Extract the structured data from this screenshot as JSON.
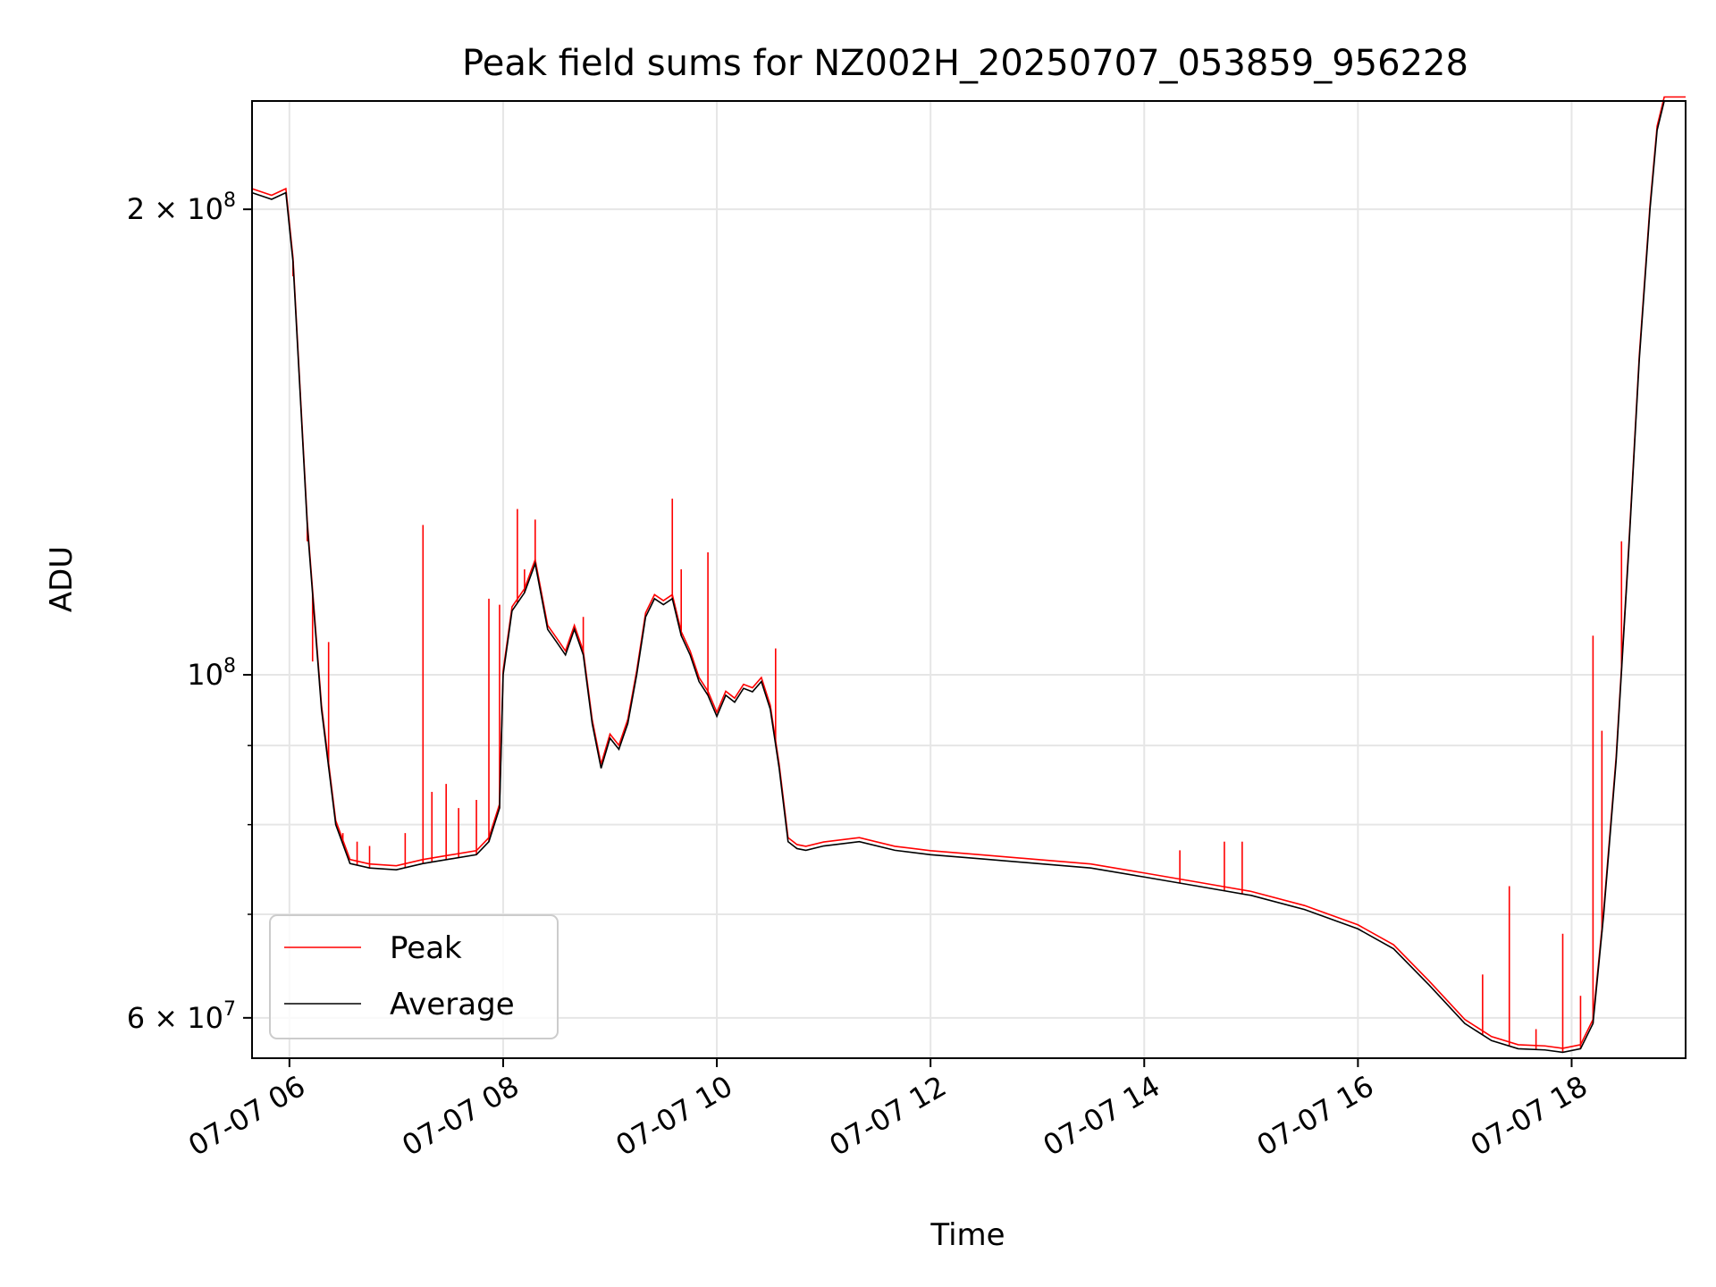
{
  "chart_data": {
    "type": "line",
    "title": "Peak field sums for NZ002H_20250707_053859_956228",
    "xlabel": "Time",
    "ylabel": "ADU",
    "yscale": "log",
    "xlim": [
      "07-07 05:39",
      "07-07 19:04"
    ],
    "ylim": [
      56500000,
      235000000
    ],
    "x_ticks": [
      {
        "t": "07-07 06:00",
        "label": "07-07 06"
      },
      {
        "t": "07-07 08:00",
        "label": "07-07 08"
      },
      {
        "t": "07-07 10:00",
        "label": "07-07 10"
      },
      {
        "t": "07-07 12:00",
        "label": "07-07 12"
      },
      {
        "t": "07-07 14:00",
        "label": "07-07 14"
      },
      {
        "t": "07-07 16:00",
        "label": "07-07 16"
      },
      {
        "t": "07-07 18:00",
        "label": "07-07 18"
      }
    ],
    "y_major_ticks": [
      {
        "v": 60000000,
        "base": "6 × 10",
        "exp": "7"
      },
      {
        "v": 100000000,
        "base": "10",
        "exp": "8"
      },
      {
        "v": 200000000,
        "base": "2 × 10",
        "exp": "8"
      }
    ],
    "y_minor_grid": [
      70000000,
      80000000,
      90000000
    ],
    "grid": true,
    "legend_position": "lower-left",
    "series": [
      {
        "name": "Average",
        "color": "#000000",
        "x": [
          "07-07 05:39",
          "07-07 05:50",
          "07-07 05:58",
          "07-07 06:02",
          "07-07 06:10",
          "07-07 06:18",
          "07-07 06:26",
          "07-07 06:34",
          "07-07 06:45",
          "07-07 07:00",
          "07-07 07:15",
          "07-07 07:30",
          "07-07 07:45",
          "07-07 07:52",
          "07-07 07:58",
          "07-07 08:00",
          "07-07 08:05",
          "07-07 08:12",
          "07-07 08:18",
          "07-07 08:25",
          "07-07 08:30",
          "07-07 08:35",
          "07-07 08:40",
          "07-07 08:45",
          "07-07 08:50",
          "07-07 08:55",
          "07-07 09:00",
          "07-07 09:05",
          "07-07 09:10",
          "07-07 09:15",
          "07-07 09:20",
          "07-07 09:25",
          "07-07 09:30",
          "07-07 09:35",
          "07-07 09:40",
          "07-07 09:45",
          "07-07 09:50",
          "07-07 09:55",
          "07-07 10:00",
          "07-07 10:05",
          "07-07 10:10",
          "07-07 10:15",
          "07-07 10:20",
          "07-07 10:25",
          "07-07 10:30",
          "07-07 10:35",
          "07-07 10:40",
          "07-07 10:45",
          "07-07 10:50",
          "07-07 11:00",
          "07-07 11:20",
          "07-07 11:40",
          "07-07 12:00",
          "07-07 12:30",
          "07-07 13:00",
          "07-07 13:30",
          "07-07 14:00",
          "07-07 14:30",
          "07-07 15:00",
          "07-07 15:30",
          "07-07 16:00",
          "07-07 16:20",
          "07-07 16:40",
          "07-07 17:00",
          "07-07 17:15",
          "07-07 17:30",
          "07-07 17:45",
          "07-07 17:55",
          "07-07 18:05",
          "07-07 18:12",
          "07-07 18:18",
          "07-07 18:25",
          "07-07 18:32",
          "07-07 18:38",
          "07-07 18:44",
          "07-07 18:48",
          "07-07 18:52",
          "07-07 19:04"
        ],
        "values": [
          205000000,
          203000000,
          205000000,
          185000000,
          125000000,
          95000000,
          80000000,
          75500000,
          75000000,
          74800000,
          75500000,
          76000000,
          76500000,
          78000000,
          82000000,
          100000000,
          110000000,
          113000000,
          118000000,
          107000000,
          105000000,
          103000000,
          107000000,
          103000000,
          93000000,
          87000000,
          91000000,
          89500000,
          93000000,
          100000000,
          109000000,
          112000000,
          111000000,
          112000000,
          106000000,
          103000000,
          99000000,
          97000000,
          94000000,
          97000000,
          96000000,
          98000000,
          97500000,
          99000000,
          95000000,
          87000000,
          78000000,
          77200000,
          77000000,
          77500000,
          78000000,
          77000000,
          76500000,
          76000000,
          75500000,
          75000000,
          74000000,
          73000000,
          72000000,
          70500000,
          68500000,
          66500000,
          63000000,
          59500000,
          58000000,
          57300000,
          57200000,
          57000000,
          57300000,
          59500000,
          70000000,
          88000000,
          120000000,
          160000000,
          200000000,
          225000000,
          235000000,
          235000000
        ]
      },
      {
        "name": "Peak",
        "color": "#ff0000",
        "spikes": [
          {
            "t": "07-07 06:02",
            "v": 181000000
          },
          {
            "t": "07-07 06:10",
            "v": 122000000
          },
          {
            "t": "07-07 06:13",
            "v": 102000000
          },
          {
            "t": "07-07 06:17",
            "v": 99000000
          },
          {
            "t": "07-07 06:22",
            "v": 105000000
          },
          {
            "t": "07-07 06:30",
            "v": 79000000
          },
          {
            "t": "07-07 06:38",
            "v": 78000000
          },
          {
            "t": "07-07 06:45",
            "v": 77500000
          },
          {
            "t": "07-07 07:05",
            "v": 79000000
          },
          {
            "t": "07-07 07:15",
            "v": 125000000
          },
          {
            "t": "07-07 07:20",
            "v": 84000000
          },
          {
            "t": "07-07 07:28",
            "v": 85000000
          },
          {
            "t": "07-07 07:35",
            "v": 82000000
          },
          {
            "t": "07-07 07:45",
            "v": 83000000
          },
          {
            "t": "07-07 07:52",
            "v": 112000000
          },
          {
            "t": "07-07 07:58",
            "v": 111000000
          },
          {
            "t": "07-07 08:08",
            "v": 128000000
          },
          {
            "t": "07-07 08:12",
            "v": 117000000
          },
          {
            "t": "07-07 08:18",
            "v": 126000000
          },
          {
            "t": "07-07 08:45",
            "v": 109000000
          },
          {
            "t": "07-07 09:35",
            "v": 130000000
          },
          {
            "t": "07-07 09:40",
            "v": 117000000
          },
          {
            "t": "07-07 09:55",
            "v": 120000000
          },
          {
            "t": "07-07 10:33",
            "v": 104000000
          },
          {
            "t": "07-07 14:20",
            "v": 77000000
          },
          {
            "t": "07-07 14:45",
            "v": 78000000
          },
          {
            "t": "07-07 14:55",
            "v": 78000000
          },
          {
            "t": "07-07 17:10",
            "v": 64000000
          },
          {
            "t": "07-07 17:25",
            "v": 73000000
          },
          {
            "t": "07-07 17:40",
            "v": 59000000
          },
          {
            "t": "07-07 17:55",
            "v": 68000000
          },
          {
            "t": "07-07 18:05",
            "v": 62000000
          },
          {
            "t": "07-07 18:12",
            "v": 106000000
          },
          {
            "t": "07-07 18:17",
            "v": 92000000
          },
          {
            "t": "07-07 18:28",
            "v": 122000000
          }
        ]
      }
    ]
  }
}
